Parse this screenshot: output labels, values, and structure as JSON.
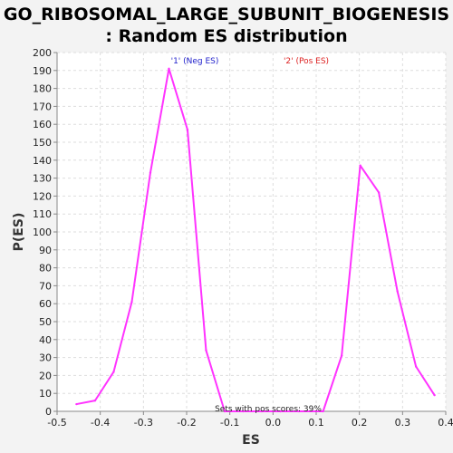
{
  "chart_data": {
    "type": "line",
    "title_line1": "GO_RIBOSOMAL_LARGE_SUBUNIT_BIOGENESIS",
    "title_line2": ": Random ES distribution",
    "xlabel": "ES",
    "ylabel": "P(ES)",
    "xlim": [
      -0.5,
      0.4
    ],
    "ylim": [
      0,
      200
    ],
    "xticks": [
      -0.5,
      -0.4,
      -0.3,
      -0.2,
      -0.1,
      0.0,
      0.1,
      0.2,
      0.3,
      0.4
    ],
    "xtick_labels": [
      "-0.5",
      "-0.4",
      "-0.3",
      "-0.2",
      "-0.1",
      "0.0",
      "0.1",
      "0.2",
      "0.3",
      "0.4"
    ],
    "yticks": [
      0,
      10,
      20,
      30,
      40,
      50,
      60,
      70,
      80,
      90,
      100,
      110,
      120,
      130,
      140,
      150,
      160,
      170,
      180,
      190,
      200
    ],
    "grid": true,
    "line_color": "#ff33ff",
    "series": [
      {
        "name": "Random ES",
        "x": [
          -0.455,
          -0.412,
          -0.369,
          -0.327,
          -0.284,
          -0.241,
          -0.198,
          -0.155,
          -0.112,
          -0.069,
          -0.026,
          0.017,
          0.06,
          0.116,
          0.159,
          0.202,
          0.245,
          0.288,
          0.331,
          0.374
        ],
        "y": [
          4,
          6,
          22,
          61,
          133,
          191,
          157,
          34,
          0,
          0,
          0,
          0,
          0,
          0,
          31,
          137,
          122,
          67,
          25,
          9
        ]
      }
    ],
    "legend": [
      {
        "label": "'1' (Neg ES)",
        "color": "#2222cc"
      },
      {
        "label": "'2' (Pos ES)",
        "color": "#dd2222"
      }
    ],
    "annotation": "Sets with pos scores: 39%"
  }
}
